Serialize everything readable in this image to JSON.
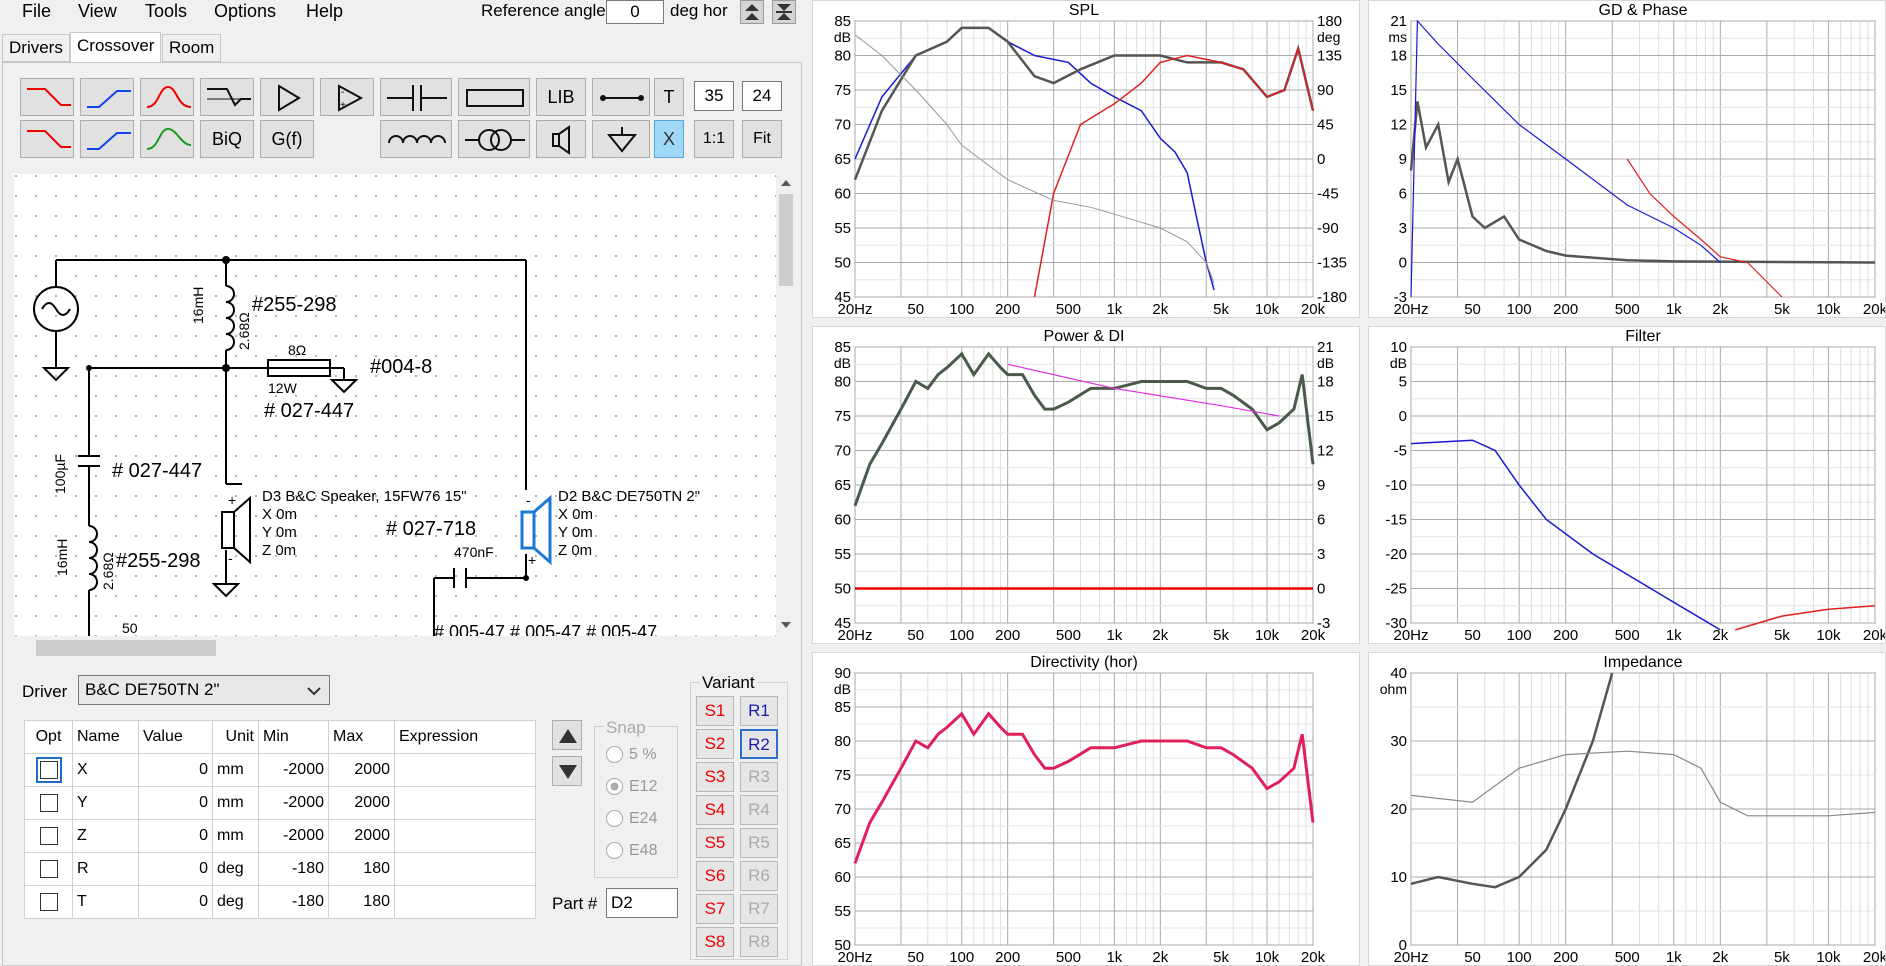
{
  "menu": {
    "file": "File",
    "view": "View",
    "tools": "Tools",
    "options": "Options",
    "help": "Help"
  },
  "reference": {
    "label": "Reference angle",
    "value": "0",
    "unit": "deg hor"
  },
  "tabs": {
    "drivers": "Drivers",
    "crossover": "Crossover",
    "room": "Room"
  },
  "toolbar": {
    "lib": "LIB",
    "t": "T",
    "x": "X",
    "ratio": "1:1",
    "fit": "Fit",
    "biq": "BiQ",
    "gf": "G(f)",
    "n1": "35",
    "n2": "24"
  },
  "schematic": {
    "l1_value": "16mH",
    "l1_res": "2.68Ω",
    "l1_part": "#255-298",
    "r_value": "8Ω",
    "r_power": "12W",
    "r_part": "#004-8",
    "r_part2": "# 027-447",
    "c1_value": "100µF",
    "c1_part": "# 027-447",
    "l2_value": "16mH",
    "l2_res": "2.68Ω",
    "l2_part": "#255-298",
    "d3_name": "D3 B&C Speaker, 15FW76 15\"",
    "d3_x": "X 0m",
    "d3_y": "Y 0m",
    "d3_z": "Z 0m",
    "d2_name": "D2 B&C DE750TN 2\"",
    "d2_x": "X 0m",
    "d2_y": "Y 0m",
    "d2_z": "Z 0m",
    "c2_part": "# 027-718",
    "c2_value": "470nF",
    "cut1": "50",
    "cut2": "# 005-47   # 005-47   # 005-47",
    "plus": "+",
    "minus": "-"
  },
  "driver": {
    "label": "Driver",
    "selected": "B&C DE750TN 2\""
  },
  "table": {
    "headers": [
      "Opt",
      "Name",
      "Value",
      "Unit",
      "Min",
      "Max",
      "Expression"
    ],
    "rows": [
      {
        "name": "X",
        "value": "0",
        "unit": "mm",
        "min": "-2000",
        "max": "2000"
      },
      {
        "name": "Y",
        "value": "0",
        "unit": "mm",
        "min": "-2000",
        "max": "2000"
      },
      {
        "name": "Z",
        "value": "0",
        "unit": "mm",
        "min": "-2000",
        "max": "2000"
      },
      {
        "name": "R",
        "value": "0",
        "unit": "deg",
        "min": "-180",
        "max": "180"
      },
      {
        "name": "T",
        "value": "0",
        "unit": "deg",
        "min": "-180",
        "max": "180"
      }
    ]
  },
  "snap": {
    "label": "Snap",
    "options": [
      "5 %",
      "E12",
      "E24",
      "E48"
    ],
    "selected": "E12"
  },
  "part": {
    "label": "Part #",
    "value": "D2"
  },
  "variant": {
    "label": "Variant",
    "s": [
      "S1",
      "S2",
      "S3",
      "S4",
      "S5",
      "S6",
      "S7",
      "S8"
    ],
    "r": [
      "R1",
      "R2",
      "R3",
      "R4",
      "R5",
      "R6",
      "R7",
      "R8"
    ]
  },
  "charts": {
    "spl": {
      "title": "SPL",
      "unit_l": "dB",
      "unit_r": "deg",
      "yl": [
        "85",
        "80",
        "75",
        "70",
        "65",
        "60",
        "55",
        "50",
        "45"
      ],
      "yr": [
        "180",
        "135",
        "90",
        "45",
        "0",
        "-45",
        "-90",
        "-135",
        "-180"
      ]
    },
    "gd": {
      "title": "GD & Phase",
      "unit_l": "ms",
      "yl": [
        "21",
        "18",
        "15",
        "12",
        "9",
        "6",
        "3",
        "0",
        "-3"
      ]
    },
    "power": {
      "title": "Power & DI",
      "unit_l": "dB",
      "unit_r": "dB",
      "yl": [
        "85",
        "80",
        "75",
        "70",
        "65",
        "60",
        "55",
        "50",
        "45"
      ],
      "yr": [
        "21",
        "18",
        "15",
        "12",
        "9",
        "6",
        "3",
        "0",
        "-3"
      ]
    },
    "filter": {
      "title": "Filter",
      "unit_l": "dB",
      "yl": [
        "10",
        "5",
        "0",
        "-5",
        "-10",
        "-15",
        "-20",
        "-25",
        "-30"
      ]
    },
    "dir": {
      "title": "Directivity (hor)",
      "unit_l": "dB",
      "yl": [
        "90",
        "85",
        "80",
        "75",
        "70",
        "65",
        "60",
        "55",
        "50"
      ]
    },
    "imp": {
      "title": "Impedance",
      "unit_l": "ohm",
      "yl": [
        "40",
        "30",
        "20",
        "10",
        "0"
      ]
    },
    "xticks": [
      "20Hz",
      "50",
      "100",
      "200",
      "500",
      "1k",
      "2k",
      "5k",
      "10k",
      "20k"
    ]
  }
}
